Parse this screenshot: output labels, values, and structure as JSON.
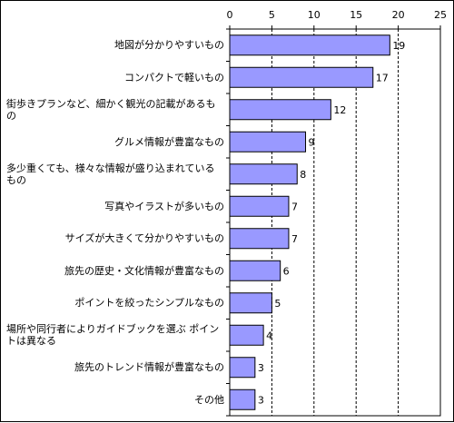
{
  "chart_data": {
    "type": "bar",
    "orientation": "horizontal",
    "categories": [
      "地図が分かりやすいもの",
      "コンパクトで軽いもの",
      "街歩きプランなど、細かく観光の記載があるもの",
      "グルメ情報が豊富なもの",
      "多少重くても、様々な情報が盛り込まれているもの",
      "写真やイラストが多いもの",
      "サイズが大きくて分かりやすいもの",
      "旅先の歴史・文化情報が豊富なもの",
      "ポイントを絞ったシンプルなもの",
      "場所や同行者によりガイドブックを選ぶ ポイントは異なる",
      "旅先のトレンド情報が豊富なもの",
      "その他"
    ],
    "values": [
      19,
      17,
      12,
      9,
      8,
      7,
      7,
      6,
      5,
      4,
      3,
      3
    ],
    "value_labels": [
      "19",
      "17",
      "12",
      "9",
      "8",
      "7",
      "7",
      "6",
      "5",
      "4",
      "3",
      "3"
    ],
    "xlim": [
      0,
      25
    ],
    "xticks": [
      0,
      5,
      10,
      15,
      20,
      25
    ],
    "xtick_labels": [
      "0",
      "5",
      "10",
      "15",
      "20",
      "25"
    ],
    "xaxis_position": "top",
    "grid": "vertical dashed",
    "bar_color": "#9999ff",
    "bar_edge_color": "#000000",
    "grid_color": "#000000"
  }
}
